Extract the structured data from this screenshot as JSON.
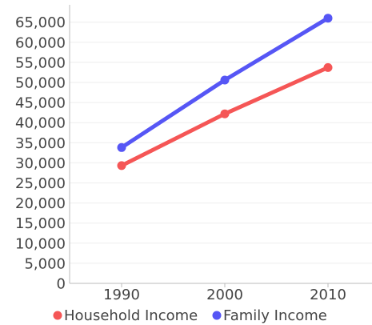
{
  "chart_data": {
    "type": "line",
    "x": [
      "1990",
      "2000",
      "2010"
    ],
    "ylim": [
      0,
      65000
    ],
    "yticks": [
      "0",
      "5,000",
      "10,000",
      "15,000",
      "20,000",
      "25,000",
      "30,000",
      "35,000",
      "40,000",
      "45,000",
      "50,000",
      "55,000",
      "60,000",
      "65,000"
    ],
    "grid": true,
    "legend_position": "bottom",
    "series": [
      {
        "name": "Household Income",
        "color": "#f55656",
        "values": [
          29300,
          42200,
          53700
        ]
      },
      {
        "name": "Family Income",
        "color": "#5656f5",
        "values": [
          33800,
          50600,
          66000
        ]
      }
    ]
  }
}
